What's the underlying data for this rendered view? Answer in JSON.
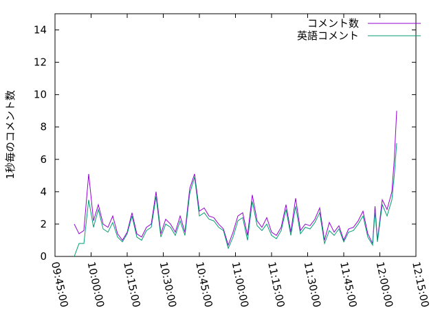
{
  "chart_data": {
    "type": "line",
    "ylabel": "1秒毎のコメント数",
    "legend": "top-right",
    "grid": false,
    "xlim": [
      "09:45:00",
      "12:15:00"
    ],
    "xticks": [
      "09:45:00",
      "10:00:00",
      "10:15:00",
      "10:30:00",
      "10:45:00",
      "11:00:00",
      "11:15:00",
      "11:30:00",
      "11:45:00",
      "12:00:00",
      "12:15:00"
    ],
    "ylim": [
      0,
      15
    ],
    "yticks": [
      0,
      2,
      4,
      6,
      8,
      10,
      12,
      14
    ],
    "x": [
      "09:53:00",
      "09:55:00",
      "09:57:00",
      "09:59:00",
      "10:01:00",
      "10:03:00",
      "10:05:00",
      "10:07:00",
      "10:09:00",
      "10:11:00",
      "10:13:00",
      "10:15:00",
      "10:17:00",
      "10:19:00",
      "10:21:00",
      "10:23:00",
      "10:25:00",
      "10:27:00",
      "10:29:00",
      "10:31:00",
      "10:33:00",
      "10:35:00",
      "10:37:00",
      "10:39:00",
      "10:41:00",
      "10:43:00",
      "10:45:00",
      "10:47:00",
      "10:49:00",
      "10:51:00",
      "10:53:00",
      "10:55:00",
      "10:57:00",
      "10:59:00",
      "11:01:00",
      "11:03:00",
      "11:05:00",
      "11:07:00",
      "11:09:00",
      "11:11:00",
      "11:13:00",
      "11:15:00",
      "11:17:00",
      "11:19:00",
      "11:21:00",
      "11:23:00",
      "11:25:00",
      "11:27:00",
      "11:29:00",
      "11:31:00",
      "11:33:00",
      "11:35:00",
      "11:37:00",
      "11:39:00",
      "11:41:00",
      "11:43:00",
      "11:45:00",
      "11:47:00",
      "11:49:00",
      "11:51:00",
      "11:53:00",
      "11:55:00",
      "11:57:00",
      "11:58:00",
      "11:59:00",
      "12:01:00",
      "12:03:00",
      "12:05:00",
      "12:06:00",
      "12:07:00"
    ],
    "series": [
      {
        "name": "コメント数",
        "color": "#9400d3",
        "values": [
          2.0,
          1.4,
          1.6,
          5.1,
          2.2,
          3.2,
          2.0,
          1.8,
          2.5,
          1.4,
          1.0,
          1.5,
          2.7,
          1.4,
          1.2,
          1.8,
          2.0,
          4.0,
          1.4,
          2.3,
          2.0,
          1.5,
          2.5,
          1.5,
          4.2,
          5.1,
          2.8,
          3.0,
          2.5,
          2.4,
          2.0,
          1.7,
          0.7,
          1.5,
          2.5,
          2.7,
          1.3,
          3.8,
          2.2,
          1.8,
          2.4,
          1.5,
          1.3,
          1.8,
          3.2,
          1.5,
          3.6,
          1.6,
          2.0,
          1.9,
          2.3,
          3.0,
          1.0,
          2.1,
          1.5,
          1.9,
          1.0,
          1.7,
          1.8,
          2.2,
          2.8,
          1.4,
          0.8,
          3.1,
          1.0,
          3.5,
          2.9,
          4.0,
          6.0,
          9.0
        ]
      },
      {
        "name": "英語コメント",
        "color": "#009e73",
        "values": [
          0,
          0.8,
          0.8,
          3.5,
          1.8,
          2.9,
          1.7,
          1.5,
          2.1,
          1.2,
          0.9,
          1.4,
          2.5,
          1.2,
          1.0,
          1.6,
          1.8,
          3.7,
          1.2,
          2.0,
          1.8,
          1.3,
          2.2,
          1.3,
          3.9,
          4.9,
          2.5,
          2.7,
          2.3,
          2.2,
          1.8,
          1.6,
          0.5,
          1.2,
          2.2,
          2.4,
          1.0,
          3.4,
          1.9,
          1.6,
          2.0,
          1.3,
          1.1,
          1.6,
          2.9,
          1.3,
          3.1,
          1.4,
          1.8,
          1.7,
          2.1,
          2.7,
          0.8,
          1.6,
          1.3,
          1.7,
          0.9,
          1.5,
          1.6,
          2.0,
          2.5,
          1.2,
          0.7,
          2.8,
          0.9,
          3.2,
          2.5,
          3.5,
          5.0,
          7.0
        ]
      }
    ]
  }
}
